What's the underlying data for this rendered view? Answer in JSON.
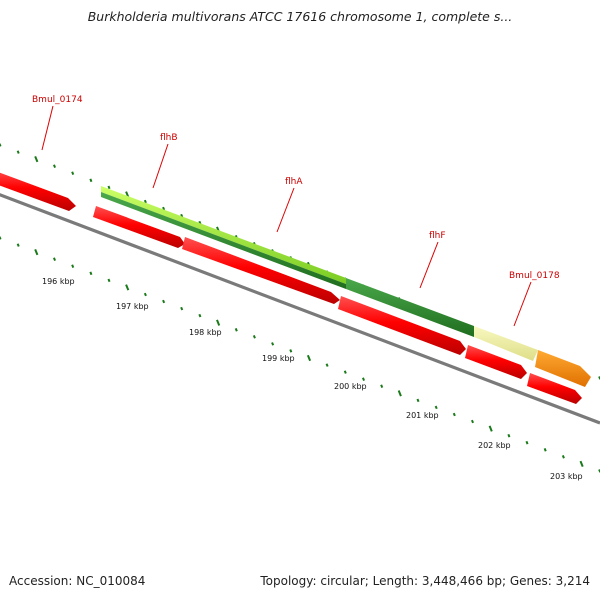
{
  "header": {
    "title": "Burkholderia multivorans ATCC 17616 chromosome 1, complete s..."
  },
  "footer": {
    "accession": "Accession: NC_010084",
    "stats": "Topology: circular; Length: 3,448,466 bp; Genes: 3,214"
  },
  "gene_labels": [
    "Bmul_0174",
    "flhB",
    "flhA",
    "flhF",
    "Bmul_0178"
  ],
  "kbp_labels": [
    "196 kbp",
    "197 kbp",
    "198 kbp",
    "199 kbp",
    "200 kbp",
    "201 kbp",
    "202 kbp",
    "203 kbp"
  ],
  "colors": {
    "cds": "#ff0000",
    "gene_light_green": "#99ee33",
    "gene_dark_green": "#2e8b2e",
    "gene_pale_yellow": "#eeeea0",
    "gene_orange": "#ff8800",
    "backbone": "#808080",
    "ticks": "#1a7a1a",
    "label_red": "#cc0000"
  }
}
